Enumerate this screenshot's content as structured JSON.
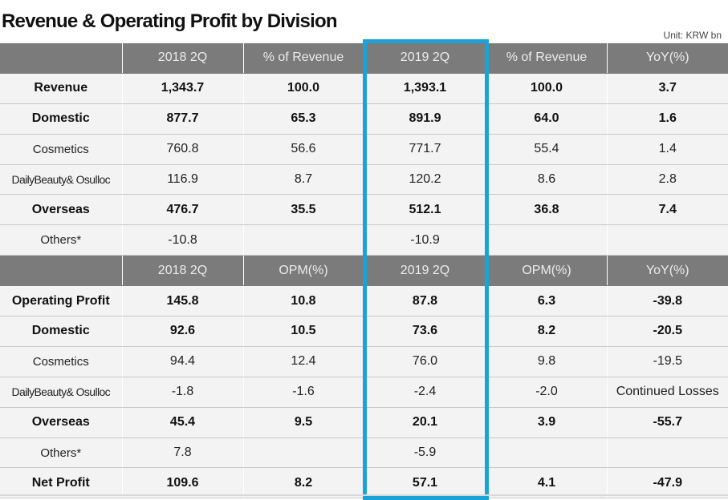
{
  "title": "Revenue & Operating Profit by Division",
  "unit": "Unit: KRW bn",
  "highlight_color": "#1aa3d6",
  "revenue_header": [
    "",
    "2018 2Q",
    "% of Revenue",
    "2019 2Q",
    "% of Revenue",
    "YoY(%)"
  ],
  "revenue_rows": [
    [
      "Revenue",
      "1,343.7",
      "100.0",
      "1,393.1",
      "100.0",
      "3.7"
    ],
    [
      "Domestic",
      "877.7",
      "65.3",
      "891.9",
      "64.0",
      "1.6"
    ],
    [
      "Cosmetics",
      "760.8",
      "56.6",
      "771.7",
      "55.4",
      "1.4"
    ],
    [
      "DailyBeauty& Osulloc",
      "116.9",
      "8.7",
      "120.2",
      "8.6",
      "2.8"
    ],
    [
      "Overseas",
      "476.7",
      "35.5",
      "512.1",
      "36.8",
      "7.4"
    ],
    [
      "Others*",
      "-10.8",
      "",
      "-10.9",
      "",
      ""
    ]
  ],
  "profit_header": [
    "",
    "2018 2Q",
    "OPM(%)",
    "2019 2Q",
    "OPM(%)",
    "YoY(%)"
  ],
  "profit_rows": [
    [
      "Operating Profit",
      "145.8",
      "10.8",
      "87.8",
      "6.3",
      "-39.8"
    ],
    [
      "Domestic",
      "92.6",
      "10.5",
      "73.6",
      "8.2",
      "-20.5"
    ],
    [
      "Cosmetics",
      "94.4",
      "12.4",
      "76.0",
      "9.8",
      "-19.5"
    ],
    [
      "DailyBeauty& Osulloc",
      "-1.8",
      "-1.6",
      "-2.4",
      "-2.0",
      "Continued Losses"
    ],
    [
      "Overseas",
      "45.4",
      "9.5",
      "20.1",
      "3.9",
      "-55.7"
    ],
    [
      "Others*",
      "7.8",
      "",
      "-5.9",
      "",
      ""
    ],
    [
      "Net Profit",
      "109.6",
      "8.2",
      "57.1",
      "4.1",
      "-47.9"
    ]
  ]
}
